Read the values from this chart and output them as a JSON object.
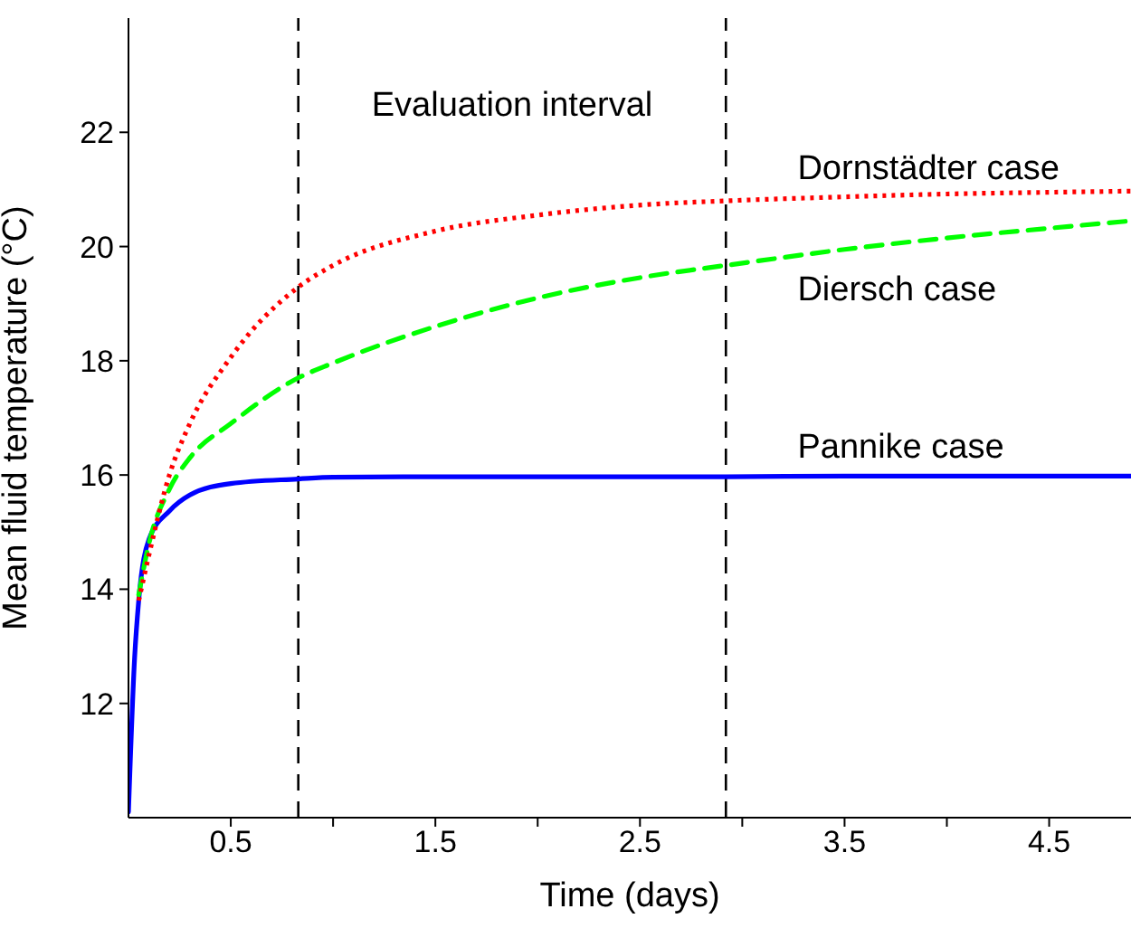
{
  "chart_data": {
    "type": "line",
    "xlabel": "Time (days)",
    "ylabel": "Mean fluid temperature (°C)",
    "xlim": [
      0,
      4.9
    ],
    "ylim": [
      10,
      24
    ],
    "xticks": [
      0.5,
      {
        "value": 1,
        "label": null
      },
      1.5,
      {
        "value": 2,
        "label": null
      },
      2.5,
      {
        "value": 3,
        "label": null
      },
      3.5,
      {
        "value": 4,
        "label": null
      },
      4.5
    ],
    "yticks": [
      12,
      14,
      16,
      18,
      20,
      22
    ],
    "grid": false,
    "legend": false,
    "marker": "none",
    "annotations": [
      "Evaluation interval"
    ],
    "ref_lines": [
      {
        "axis": "x",
        "value": 0.83,
        "color": "#000000",
        "line_style": "dashed"
      },
      {
        "axis": "x",
        "value": 2.92,
        "color": "#000000",
        "line_style": "dashed"
      }
    ],
    "series": [
      {
        "name": "Dornstädter case",
        "color": "#ff0000",
        "line_style": "dotted",
        "x": [
          0.05,
          0.1,
          0.2,
          0.3,
          0.5,
          0.83,
          1,
          1.5,
          2,
          2.56,
          2.92,
          3.5,
          4,
          4.5,
          4.9
        ],
        "values": [
          13.8,
          14.6,
          16,
          16.9,
          18.06,
          19.29,
          19.67,
          20.27,
          20.55,
          20.74,
          20.8,
          20.87,
          20.92,
          20.95,
          20.97
        ]
      },
      {
        "name": "Diersch case",
        "color": "#00ff00",
        "line_style": "dashed",
        "x": [
          0.05,
          0.1,
          0.2,
          0.3,
          0.5,
          0.83,
          1,
          1.5,
          2,
          2.56,
          2.92,
          3.5,
          4,
          4.5,
          4.9
        ],
        "values": [
          13.9,
          14.8,
          15.75,
          16.3,
          16.9,
          17.7,
          17.96,
          18.6,
          19.1,
          19.49,
          19.67,
          19.95,
          20.15,
          20.32,
          20.45
        ]
      },
      {
        "name": "Pannike case",
        "color": "#0000ff",
        "line_style": "solid",
        "x": [
          0,
          0.03,
          0.05,
          0.1,
          0.2,
          0.3,
          0.5,
          0.83,
          1,
          1.5,
          2,
          2.56,
          2.92,
          3.5,
          4,
          4.5,
          4.9
        ],
        "values": [
          10.1,
          12.8,
          13.8,
          14.87,
          15.37,
          15.65,
          15.85,
          15.93,
          15.96,
          15.97,
          15.97,
          15.97,
          15.97,
          15.98,
          15.98,
          15.98,
          15.98
        ]
      }
    ]
  }
}
